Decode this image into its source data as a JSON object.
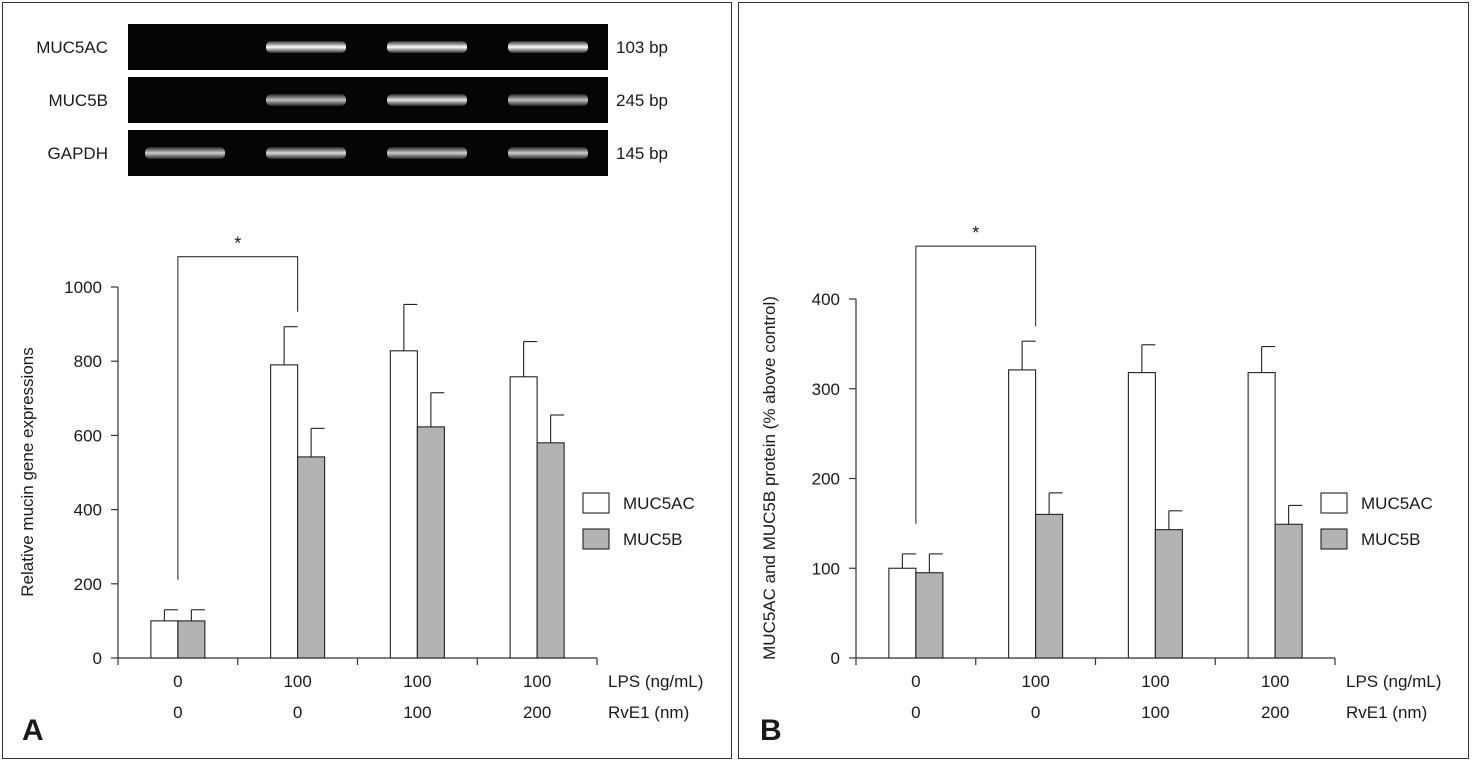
{
  "panels": [
    {
      "letter": "A",
      "gel": {
        "rows": [
          {
            "name": "MUC5AC",
            "size": "103 bp",
            "intensities": [
              0.0,
              1.0,
              1.0,
              1.0
            ]
          },
          {
            "name": "MUC5B",
            "size": "245 bp",
            "intensities": [
              0.0,
              0.75,
              0.9,
              0.75
            ]
          },
          {
            "name": "GAPDH",
            "size": "145 bp",
            "intensities": [
              0.8,
              0.85,
              0.8,
              0.8
            ]
          }
        ]
      },
      "chart_data": {
        "type": "bar",
        "ylabel": "Relative mucin gene expressions",
        "ylim": [
          0,
          1000
        ],
        "yticks": [
          0,
          200,
          400,
          600,
          800,
          1000
        ],
        "categories": [
          "0 / 0",
          "100 / 0",
          "100 / 100",
          "100 / 200"
        ],
        "x_row_labels": [
          {
            "name": "LPS (ng/mL)",
            "values": [
              "0",
              "100",
              "100",
              "100"
            ]
          },
          {
            "name": "RvE1 (nm)",
            "values": [
              "0",
              "0",
              "100",
              "200"
            ]
          }
        ],
        "series": [
          {
            "name": "MUC5AC",
            "color": "#ffffff",
            "values": [
              100,
              790,
              828,
              758
            ],
            "errors": [
              30,
              103,
              125,
              95
            ]
          },
          {
            "name": "MUC5B",
            "color": "#b3b3b3",
            "values": [
              100,
              542,
              623,
              580
            ],
            "errors": [
              30,
              77,
              92,
              75
            ]
          }
        ],
        "significance": {
          "label": "*",
          "from_category": 0,
          "to_category": 1
        },
        "legend": "right"
      }
    },
    {
      "letter": "B",
      "chart_data": {
        "type": "bar",
        "ylabel": "MUC5AC and MUC5B protein (% above control)",
        "ylim": [
          0,
          400
        ],
        "yticks": [
          0,
          100,
          200,
          300,
          400
        ],
        "categories": [
          "0 / 0",
          "100 / 0",
          "100 / 100",
          "100 / 200"
        ],
        "x_row_labels": [
          {
            "name": "LPS (ng/mL)",
            "values": [
              "0",
              "100",
              "100",
              "100"
            ]
          },
          {
            "name": "RvE1 (nm)",
            "values": [
              "0",
              "0",
              "100",
              "200"
            ]
          }
        ],
        "series": [
          {
            "name": "MUC5AC",
            "color": "#ffffff",
            "values": [
              100,
              321,
              318,
              318
            ],
            "errors": [
              16,
              32,
              31,
              29
            ]
          },
          {
            "name": "MUC5B",
            "color": "#b3b3b3",
            "values": [
              95,
              160,
              143,
              149
            ],
            "errors": [
              21,
              24,
              21,
              21
            ]
          }
        ],
        "significance": {
          "label": "*",
          "from_category": 0,
          "to_category": 1
        },
        "legend": "right"
      }
    }
  ]
}
